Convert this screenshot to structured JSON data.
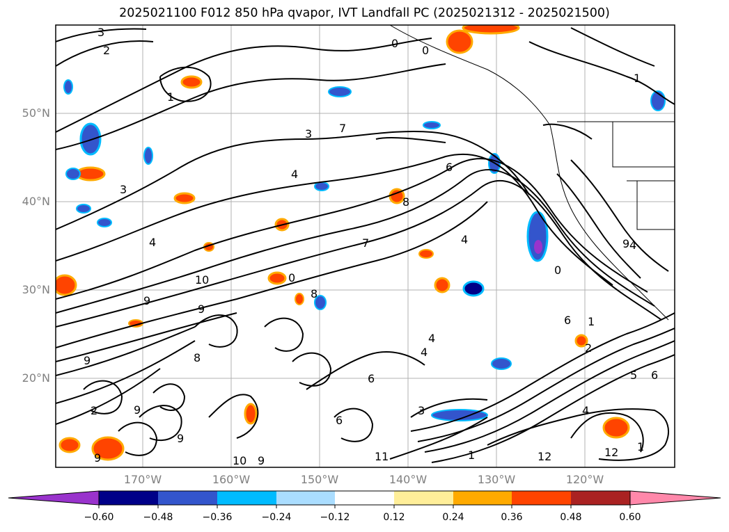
{
  "title": "2025021100 F012 850 hPa qvapor, IVT Landfall PC (2025021312 - 2025021500)",
  "map": {
    "lat_labels": [
      "50°N",
      "40°N",
      "30°N",
      "20°N"
    ],
    "lon_labels": [
      "170°W",
      "160°W",
      "150°W",
      "140°W",
      "130°W",
      "120°W"
    ],
    "contour_labels": [
      "3",
      "2",
      "1",
      "0",
      "0",
      "1",
      "3",
      "7",
      "4",
      "3",
      "6",
      "4",
      "8",
      "4",
      "7",
      "9",
      "9",
      "0",
      "8",
      "6",
      "4",
      "4",
      "9",
      "2",
      "1",
      "0",
      "1",
      "4",
      "9",
      "10",
      "9",
      "8",
      "6",
      "12",
      "12",
      "11",
      "9",
      "10",
      "9",
      "6",
      "6",
      "5",
      "9",
      "2",
      "3",
      "4",
      "1"
    ]
  },
  "colorbar": {
    "ticks": [
      "−0.60",
      "−0.48",
      "−0.36",
      "−0.24",
      "−0.12",
      "0.12",
      "0.24",
      "0.36",
      "0.48",
      "0.60"
    ],
    "colors": [
      "#9933cc",
      "#000088",
      "#3355cc",
      "#00bbff",
      "#aaddff",
      "#ffffff",
      "#ffee99",
      "#ffaa00",
      "#ff4400",
      "#aa2222",
      "#ff88aa"
    ],
    "extend_low_color": "#9933cc",
    "extend_high_color": "#ff88aa"
  }
}
